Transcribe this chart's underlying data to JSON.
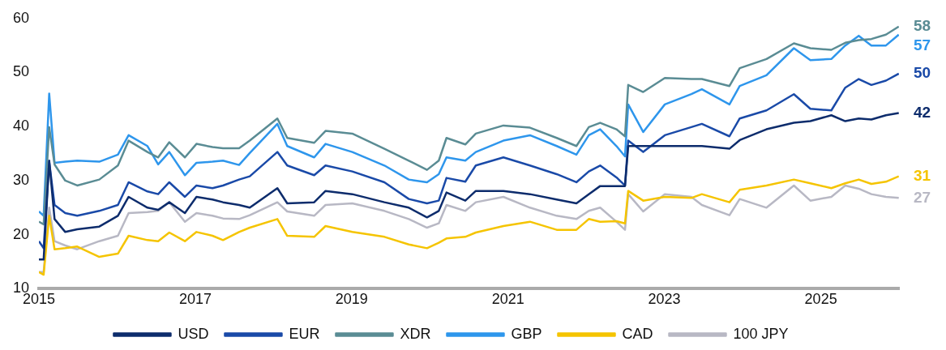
{
  "chart_data": {
    "type": "line",
    "legend": "bottom",
    "grid": false,
    "marker": "none",
    "line_style": "solid",
    "xlim": [
      "2015-01-01",
      "2026-01-01"
    ],
    "xticks": [
      "2015",
      "2017",
      "2019",
      "2021",
      "2023",
      "2025"
    ],
    "ylim": [
      10,
      60
    ],
    "yticks": [
      10,
      20,
      30,
      40,
      50,
      60
    ],
    "x": [
      "2015-01-01",
      "2015-01-23",
      "2015-02-18",
      "2015-03-15",
      "2015-05-04",
      "2015-06-29",
      "2015-10-10",
      "2016-01-05",
      "2016-02-24",
      "2016-05-22",
      "2016-07-11",
      "2016-09-01",
      "2016-11-13",
      "2017-01-06",
      "2017-03-22",
      "2017-05-10",
      "2017-07-24",
      "2017-09-12",
      "2018-01-19",
      "2018-03-06",
      "2018-07-10",
      "2018-09-01",
      "2019-01-04",
      "2019-06-03",
      "2019-09-25",
      "2019-12-19",
      "2020-02-12",
      "2020-03-19",
      "2020-06-15",
      "2020-08-03",
      "2020-12-10",
      "2021-04-13",
      "2021-08-16",
      "2021-11-16",
      "2022-01-13",
      "2022-03-07",
      "2022-05-22",
      "2022-07-01",
      "2022-07-16",
      "2022-09-24",
      "2023-01-03",
      "2023-05-07",
      "2023-06-25",
      "2023-11-01",
      "2023-12-19",
      "2024-04-22",
      "2024-08-28",
      "2024-11-13",
      "2025-02-19",
      "2025-04-25",
      "2025-06-27",
      "2025-08-25",
      "2025-11-01",
      "2025-12-31"
    ],
    "series": [
      {
        "name": "USD",
        "color": "#0d2c6c",
        "values": [
          15.4,
          15.4,
          33.7,
          22.9,
          20.5,
          21,
          21.5,
          23.5,
          27,
          25,
          24.6,
          26,
          24,
          27,
          26.5,
          26,
          25.5,
          25,
          28.6,
          25.8,
          26,
          28.1,
          27.5,
          26,
          25,
          23.2,
          24.4,
          27.8,
          26.3,
          28.1,
          28.1,
          27.5,
          26.5,
          25.8,
          27.5,
          29,
          29,
          29,
          36.4,
          36.4,
          36.4,
          36.4,
          36.4,
          35.9,
          37.5,
          39.5,
          40.7,
          41,
          42.1,
          41,
          41.5,
          41.3,
          42.1,
          42.5
        ],
        "value_labels": [
          null,
          null,
          null,
          null,
          null,
          null,
          null,
          null,
          null,
          null,
          null,
          null,
          null,
          null,
          null,
          null,
          null,
          null,
          null,
          null,
          null,
          null,
          null,
          null,
          null,
          null,
          null,
          null,
          null,
          null,
          null,
          null,
          null,
          null,
          null,
          null,
          null,
          null,
          null,
          null,
          null,
          null,
          null,
          null,
          null,
          null,
          null,
          null,
          null,
          null,
          null,
          null,
          null,
          "42"
        ]
      },
      {
        "name": "EUR",
        "color": "#1a4aa8",
        "values": [
          18.8,
          17.5,
          33.5,
          25.5,
          24,
          23.5,
          24.4,
          25.5,
          29.7,
          28,
          27.5,
          29.7,
          27,
          29.1,
          28.6,
          29.1,
          30.2,
          30.8,
          35.3,
          32.8,
          31,
          32.8,
          31.7,
          29.7,
          26.6,
          25.8,
          26.3,
          30.5,
          29.8,
          32.8,
          34.3,
          32.8,
          31.2,
          29.7,
          31.7,
          32.8,
          30.6,
          29.1,
          37.4,
          35.3,
          38.4,
          39.9,
          40.5,
          38.2,
          41.5,
          43,
          46,
          43.3,
          43,
          47.2,
          48.8,
          47.7,
          48.5,
          49.8
        ],
        "value_labels": [
          null,
          null,
          null,
          null,
          null,
          null,
          null,
          null,
          null,
          null,
          null,
          null,
          null,
          null,
          null,
          null,
          null,
          null,
          null,
          null,
          null,
          null,
          null,
          null,
          null,
          null,
          null,
          null,
          null,
          null,
          null,
          null,
          null,
          null,
          null,
          null,
          null,
          null,
          null,
          null,
          null,
          null,
          null,
          null,
          null,
          null,
          null,
          null,
          null,
          null,
          null,
          null,
          null,
          "50"
        ]
      },
      {
        "name": "XDR",
        "color": "#5a8c94",
        "values": [
          22.4,
          21.9,
          39.9,
          33,
          30,
          29.1,
          30.2,
          32.8,
          37.4,
          35.3,
          34.3,
          37.1,
          34.3,
          36.8,
          36.2,
          36,
          36,
          37.4,
          41.5,
          37.9,
          37,
          39.2,
          38.7,
          35.9,
          33.7,
          32,
          33.7,
          37.9,
          36.7,
          38.7,
          40.2,
          39.8,
          37.9,
          36.4,
          39.9,
          40.7,
          39.5,
          38.2,
          47.7,
          46.4,
          49,
          48.8,
          48.8,
          47.5,
          50.8,
          52.5,
          55.4,
          54.5,
          54.2,
          55.5,
          56,
          56.2,
          57,
          58.5
        ],
        "value_labels": [
          null,
          null,
          null,
          null,
          null,
          null,
          null,
          null,
          null,
          null,
          null,
          null,
          null,
          null,
          null,
          null,
          null,
          null,
          null,
          null,
          null,
          null,
          null,
          null,
          null,
          null,
          null,
          null,
          null,
          null,
          null,
          null,
          null,
          null,
          null,
          null,
          null,
          null,
          null,
          null,
          null,
          null,
          null,
          null,
          null,
          null,
          null,
          null,
          null,
          null,
          null,
          null,
          null,
          "58"
        ]
      },
      {
        "name": "GBP",
        "color": "#2e96ec",
        "values": [
          24.3,
          23.5,
          46.1,
          33.3,
          33.5,
          33.7,
          33.5,
          34.8,
          38.4,
          36.4,
          33,
          35.3,
          31,
          33.3,
          33.5,
          33.7,
          32.9,
          35.1,
          40.5,
          36.4,
          34.3,
          36.8,
          35.3,
          32.8,
          30.2,
          29.7,
          31.2,
          34.3,
          33.7,
          35.3,
          37.4,
          38.4,
          36.4,
          34.8,
          38.4,
          39.5,
          36.4,
          34.5,
          44.1,
          39,
          44.1,
          46,
          46.9,
          44.1,
          47.5,
          49.5,
          54.5,
          52.3,
          52.5,
          55,
          56.8,
          55,
          55,
          57
        ],
        "value_labels": [
          null,
          null,
          null,
          null,
          null,
          null,
          null,
          null,
          null,
          null,
          null,
          null,
          null,
          null,
          null,
          null,
          null,
          null,
          null,
          null,
          null,
          null,
          null,
          null,
          null,
          null,
          null,
          null,
          null,
          null,
          null,
          null,
          null,
          null,
          null,
          null,
          null,
          null,
          null,
          null,
          null,
          null,
          null,
          null,
          null,
          null,
          null,
          null,
          null,
          null,
          null,
          null,
          null,
          "57"
        ]
      },
      {
        "name": "CAD",
        "color": "#f5c400",
        "values": [
          13.1,
          12.6,
          23.5,
          17.3,
          17.5,
          17.8,
          15.9,
          16.5,
          19.8,
          19,
          18.8,
          20.4,
          18.8,
          20.5,
          19.8,
          19,
          20.5,
          21.3,
          22.9,
          19.8,
          19.6,
          21.6,
          20.5,
          19.6,
          18.2,
          17.5,
          18.5,
          19.3,
          19.6,
          20.4,
          21.6,
          22.4,
          20.9,
          20.9,
          22.9,
          22.4,
          22.5,
          22.1,
          28.1,
          26.3,
          27,
          26.8,
          27.5,
          26,
          28.3,
          29.1,
          30.2,
          29.5,
          28.6,
          29.5,
          30.2,
          29.4,
          29.8,
          30.8
        ],
        "value_labels": [
          null,
          null,
          null,
          null,
          null,
          null,
          null,
          null,
          null,
          null,
          null,
          null,
          null,
          null,
          null,
          null,
          null,
          null,
          null,
          null,
          null,
          null,
          null,
          null,
          null,
          null,
          null,
          null,
          null,
          null,
          null,
          null,
          null,
          null,
          null,
          null,
          null,
          null,
          null,
          null,
          null,
          null,
          null,
          null,
          null,
          null,
          null,
          null,
          null,
          null,
          null,
          null,
          null,
          "31"
        ]
      },
      {
        "name": "100 JPY",
        "color": "#b8b8c4",
        "values": [
          13.1,
          13.1,
          25,
          18.8,
          18,
          17.3,
          18.8,
          19.8,
          24,
          24.2,
          24.4,
          26,
          22.4,
          24,
          23.5,
          23,
          22.9,
          23.6,
          26,
          24.3,
          23.5,
          25.5,
          25.8,
          24.4,
          22.9,
          21.3,
          22.1,
          25.5,
          24.4,
          26,
          27,
          25,
          23.5,
          22.9,
          24.4,
          25,
          22.4,
          20.9,
          27.5,
          24.3,
          27.5,
          27,
          25.5,
          23.6,
          26.6,
          25,
          29.1,
          26.3,
          27,
          29.1,
          28.5,
          27.5,
          27,
          26.8
        ],
        "value_labels": [
          null,
          null,
          null,
          null,
          null,
          null,
          null,
          null,
          null,
          null,
          null,
          null,
          null,
          null,
          null,
          null,
          null,
          null,
          null,
          null,
          null,
          null,
          null,
          null,
          null,
          null,
          null,
          null,
          null,
          null,
          null,
          null,
          null,
          null,
          null,
          null,
          null,
          null,
          null,
          null,
          null,
          null,
          null,
          null,
          null,
          null,
          null,
          null,
          null,
          null,
          null,
          null,
          null,
          "27"
        ]
      }
    ]
  }
}
